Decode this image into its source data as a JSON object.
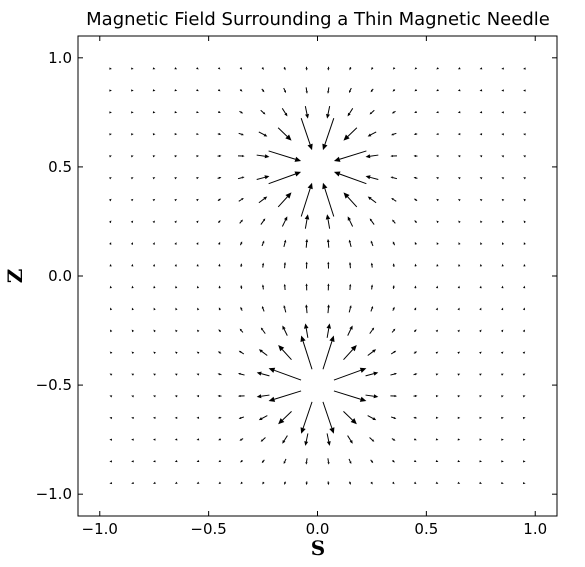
{
  "chart_data": {
    "type": "quiver",
    "title": "Magnetic Field Surrounding a Thin Magnetic Needle",
    "xlabel": "S",
    "ylabel": "Z",
    "xlim": [
      -1.1,
      1.1
    ],
    "ylim": [
      -1.1,
      1.1
    ],
    "xticks": [
      -1.0,
      -0.5,
      0.0,
      0.5,
      1.0
    ],
    "xtick_labels": [
      "−1.0",
      "−0.5",
      "0.0",
      "0.5",
      "1.0"
    ],
    "yticks": [
      -1.0,
      -0.5,
      0.0,
      0.5,
      1.0
    ],
    "ytick_labels": [
      "−1.0",
      "−0.5",
      "0.0",
      "0.5",
      "1.0"
    ],
    "grid": false,
    "legend": false,
    "field": {
      "model": "dipole pair (thin magnetic needle)",
      "poles": [
        {
          "s": 0.0,
          "z": 0.5,
          "sign": -1
        },
        {
          "s": 0.0,
          "z": -0.5,
          "sign": 1
        }
      ],
      "grid_s": {
        "start": -0.95,
        "stop": 0.95,
        "count": 20
      },
      "grid_z": {
        "start": -0.95,
        "stop": 0.95,
        "count": 20
      },
      "excluded_pole_radius": 0.12,
      "color": "#000000"
    }
  }
}
